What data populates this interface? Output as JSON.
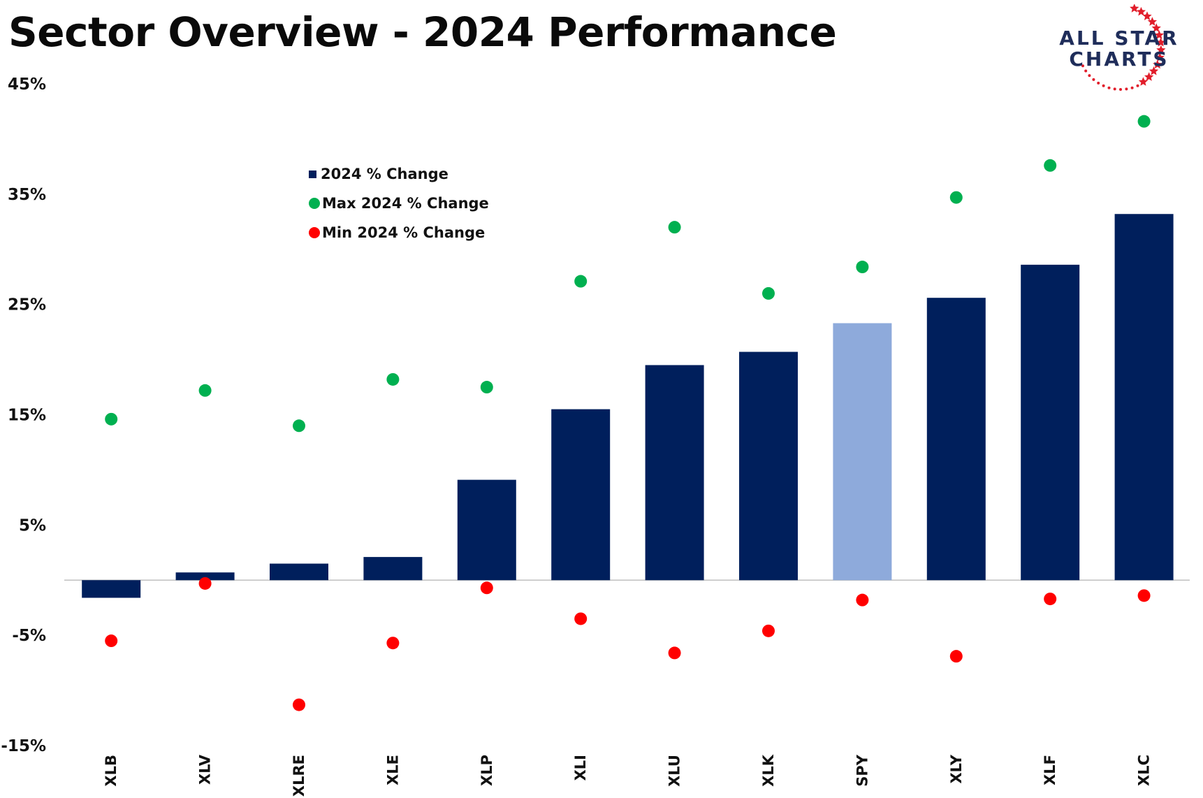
{
  "header": {
    "title": "Sector Overview - 2024 Performance"
  },
  "logo": {
    "line1": "ALL STAR",
    "line2": "CHARTS",
    "star_color": "#e11d2a",
    "text_color": "#1f2d5a"
  },
  "legend": {
    "items": [
      {
        "label": "2024 % Change",
        "color": "#001f5c",
        "shape": "square"
      },
      {
        "label": "Max 2024 % Change",
        "color": "#00b050",
        "shape": "circle"
      },
      {
        "label": "Min 2024 % Change",
        "color": "#ff0000",
        "shape": "circle"
      }
    ]
  },
  "chart_data": {
    "type": "bar",
    "title": "Sector Overview - 2024 Performance",
    "categories": [
      "XLB",
      "XLV",
      "XLRE",
      "XLE",
      "XLP",
      "XLI",
      "XLU",
      "XLK",
      "SPY",
      "XLY",
      "XLF",
      "XLC"
    ],
    "series": [
      {
        "name": "2024 % Change",
        "type": "bar",
        "color": "#001f5c",
        "highlight_category": "SPY",
        "highlight_color": "#8eaadb",
        "values": [
          -1.6,
          0.7,
          1.5,
          2.1,
          9.1,
          15.5,
          19.5,
          20.7,
          23.3,
          25.6,
          28.6,
          33.2
        ]
      },
      {
        "name": "Max 2024 % Change",
        "type": "scatter",
        "color": "#00b050",
        "values": [
          14.6,
          17.2,
          14.0,
          18.2,
          17.5,
          27.1,
          32.0,
          26.0,
          28.4,
          34.7,
          37.6,
          41.6
        ]
      },
      {
        "name": "Min 2024 % Change",
        "type": "scatter",
        "color": "#ff0000",
        "values": [
          -5.5,
          -0.3,
          -11.3,
          -5.7,
          -0.7,
          -3.5,
          -6.6,
          -4.6,
          -1.8,
          -6.9,
          -1.7,
          -1.4
        ]
      }
    ],
    "yticks": [
      "45%",
      "35%",
      "25%",
      "15%",
      "5%",
      "-5%",
      "-15%"
    ],
    "ytick_values": [
      45,
      35,
      25,
      15,
      5,
      -5,
      -15
    ],
    "ylim": [
      -15,
      45
    ],
    "xlabel": "",
    "ylabel": "",
    "grid": false,
    "legend_position": "top-left"
  }
}
